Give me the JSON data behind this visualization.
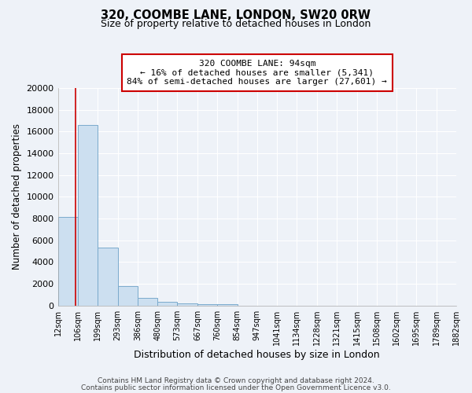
{
  "title": "320, COOMBE LANE, LONDON, SW20 0RW",
  "subtitle": "Size of property relative to detached houses in London",
  "bar_values": [
    8150,
    16600,
    5300,
    1800,
    700,
    300,
    200,
    150,
    100,
    0,
    0,
    0,
    0,
    0,
    0,
    0,
    0,
    0,
    0,
    0
  ],
  "bin_edges": [
    12,
    106,
    199,
    293,
    386,
    480,
    573,
    667,
    760,
    854,
    947,
    1041,
    1134,
    1228,
    1321,
    1415,
    1508,
    1602,
    1695,
    1789,
    1882
  ],
  "xtick_labels": [
    "12sqm",
    "106sqm",
    "199sqm",
    "293sqm",
    "386sqm",
    "480sqm",
    "573sqm",
    "667sqm",
    "760sqm",
    "854sqm",
    "947sqm",
    "1041sqm",
    "1134sqm",
    "1228sqm",
    "1321sqm",
    "1415sqm",
    "1508sqm",
    "1602sqm",
    "1695sqm",
    "1789sqm",
    "1882sqm"
  ],
  "ylabel": "Number of detached properties",
  "xlabel": "Distribution of detached houses by size in London",
  "bar_color": "#ccdff0",
  "bar_edge_color": "#7aaacc",
  "property_line_x": 94,
  "property_line_color": "#cc0000",
  "annotation_title": "320 COOMBE LANE: 94sqm",
  "annotation_line1": "← 16% of detached houses are smaller (5,341)",
  "annotation_line2": "84% of semi-detached houses are larger (27,601) →",
  "annotation_box_edge": "#cc0000",
  "ylim": [
    0,
    20000
  ],
  "yticks": [
    0,
    2000,
    4000,
    6000,
    8000,
    10000,
    12000,
    14000,
    16000,
    18000,
    20000
  ],
  "footer1": "Contains HM Land Registry data © Crown copyright and database right 2024.",
  "footer2": "Contains public sector information licensed under the Open Government Licence v3.0.",
  "bg_color": "#eef2f8",
  "grid_color": "#ffffff",
  "title_fontsize": 10.5,
  "subtitle_fontsize": 9
}
